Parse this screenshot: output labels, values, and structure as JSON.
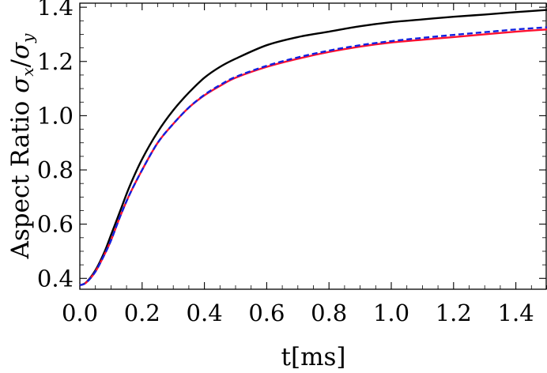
{
  "chart_data": {
    "type": "line",
    "xlabel": "t[ms]",
    "ylabel": {
      "prefix": "Aspect Ratio ",
      "numerator": "σ",
      "numerator_sub": "x",
      "slash": "/",
      "denominator": "σ",
      "denominator_sub": "y"
    },
    "xlim": [
      0.0,
      1.5
    ],
    "ylim": [
      0.36,
      1.415
    ],
    "x_ticks": [
      "0.0",
      "0.2",
      "0.4",
      "0.6",
      "0.8",
      "1.0",
      "1.2",
      "1.4"
    ],
    "y_ticks": [
      "0.4",
      "0.6",
      "0.8",
      "1.0",
      "1.2",
      "1.4"
    ],
    "grid": false,
    "legend": "none",
    "series": [
      {
        "color": "#000000",
        "style": "solid",
        "x": [
          0.0,
          0.02,
          0.05,
          0.08,
          0.1,
          0.13,
          0.16,
          0.2,
          0.25,
          0.3,
          0.35,
          0.4,
          0.45,
          0.5,
          0.6,
          0.7,
          0.8,
          0.9,
          1.0,
          1.1,
          1.2,
          1.3,
          1.4,
          1.5
        ],
        "y": [
          0.375,
          0.385,
          0.43,
          0.5,
          0.56,
          0.65,
          0.74,
          0.84,
          0.94,
          1.02,
          1.085,
          1.14,
          1.18,
          1.21,
          1.26,
          1.29,
          1.31,
          1.33,
          1.345,
          1.355,
          1.365,
          1.373,
          1.382,
          1.39
        ]
      },
      {
        "color": "#ff1030",
        "style": "solid",
        "x": [
          0.0,
          0.02,
          0.05,
          0.08,
          0.1,
          0.13,
          0.16,
          0.2,
          0.25,
          0.3,
          0.35,
          0.4,
          0.45,
          0.5,
          0.6,
          0.7,
          0.8,
          0.9,
          1.0,
          1.1,
          1.2,
          1.3,
          1.4,
          1.5
        ],
        "y": [
          0.375,
          0.384,
          0.425,
          0.49,
          0.54,
          0.63,
          0.71,
          0.8,
          0.9,
          0.97,
          1.03,
          1.075,
          1.11,
          1.14,
          1.18,
          1.21,
          1.235,
          1.255,
          1.27,
          1.28,
          1.29,
          1.3,
          1.31,
          1.318
        ]
      },
      {
        "color": "#1020e0",
        "style": "dashed",
        "x": [
          0.0,
          0.02,
          0.05,
          0.08,
          0.1,
          0.13,
          0.16,
          0.2,
          0.25,
          0.3,
          0.35,
          0.4,
          0.45,
          0.5,
          0.6,
          0.7,
          0.8,
          0.9,
          1.0,
          1.1,
          1.2,
          1.3,
          1.4,
          1.5
        ],
        "y": [
          0.375,
          0.384,
          0.425,
          0.49,
          0.54,
          0.63,
          0.71,
          0.8,
          0.9,
          0.97,
          1.03,
          1.077,
          1.113,
          1.143,
          1.184,
          1.215,
          1.24,
          1.26,
          1.275,
          1.287,
          1.298,
          1.308,
          1.318,
          1.326
        ]
      }
    ]
  }
}
